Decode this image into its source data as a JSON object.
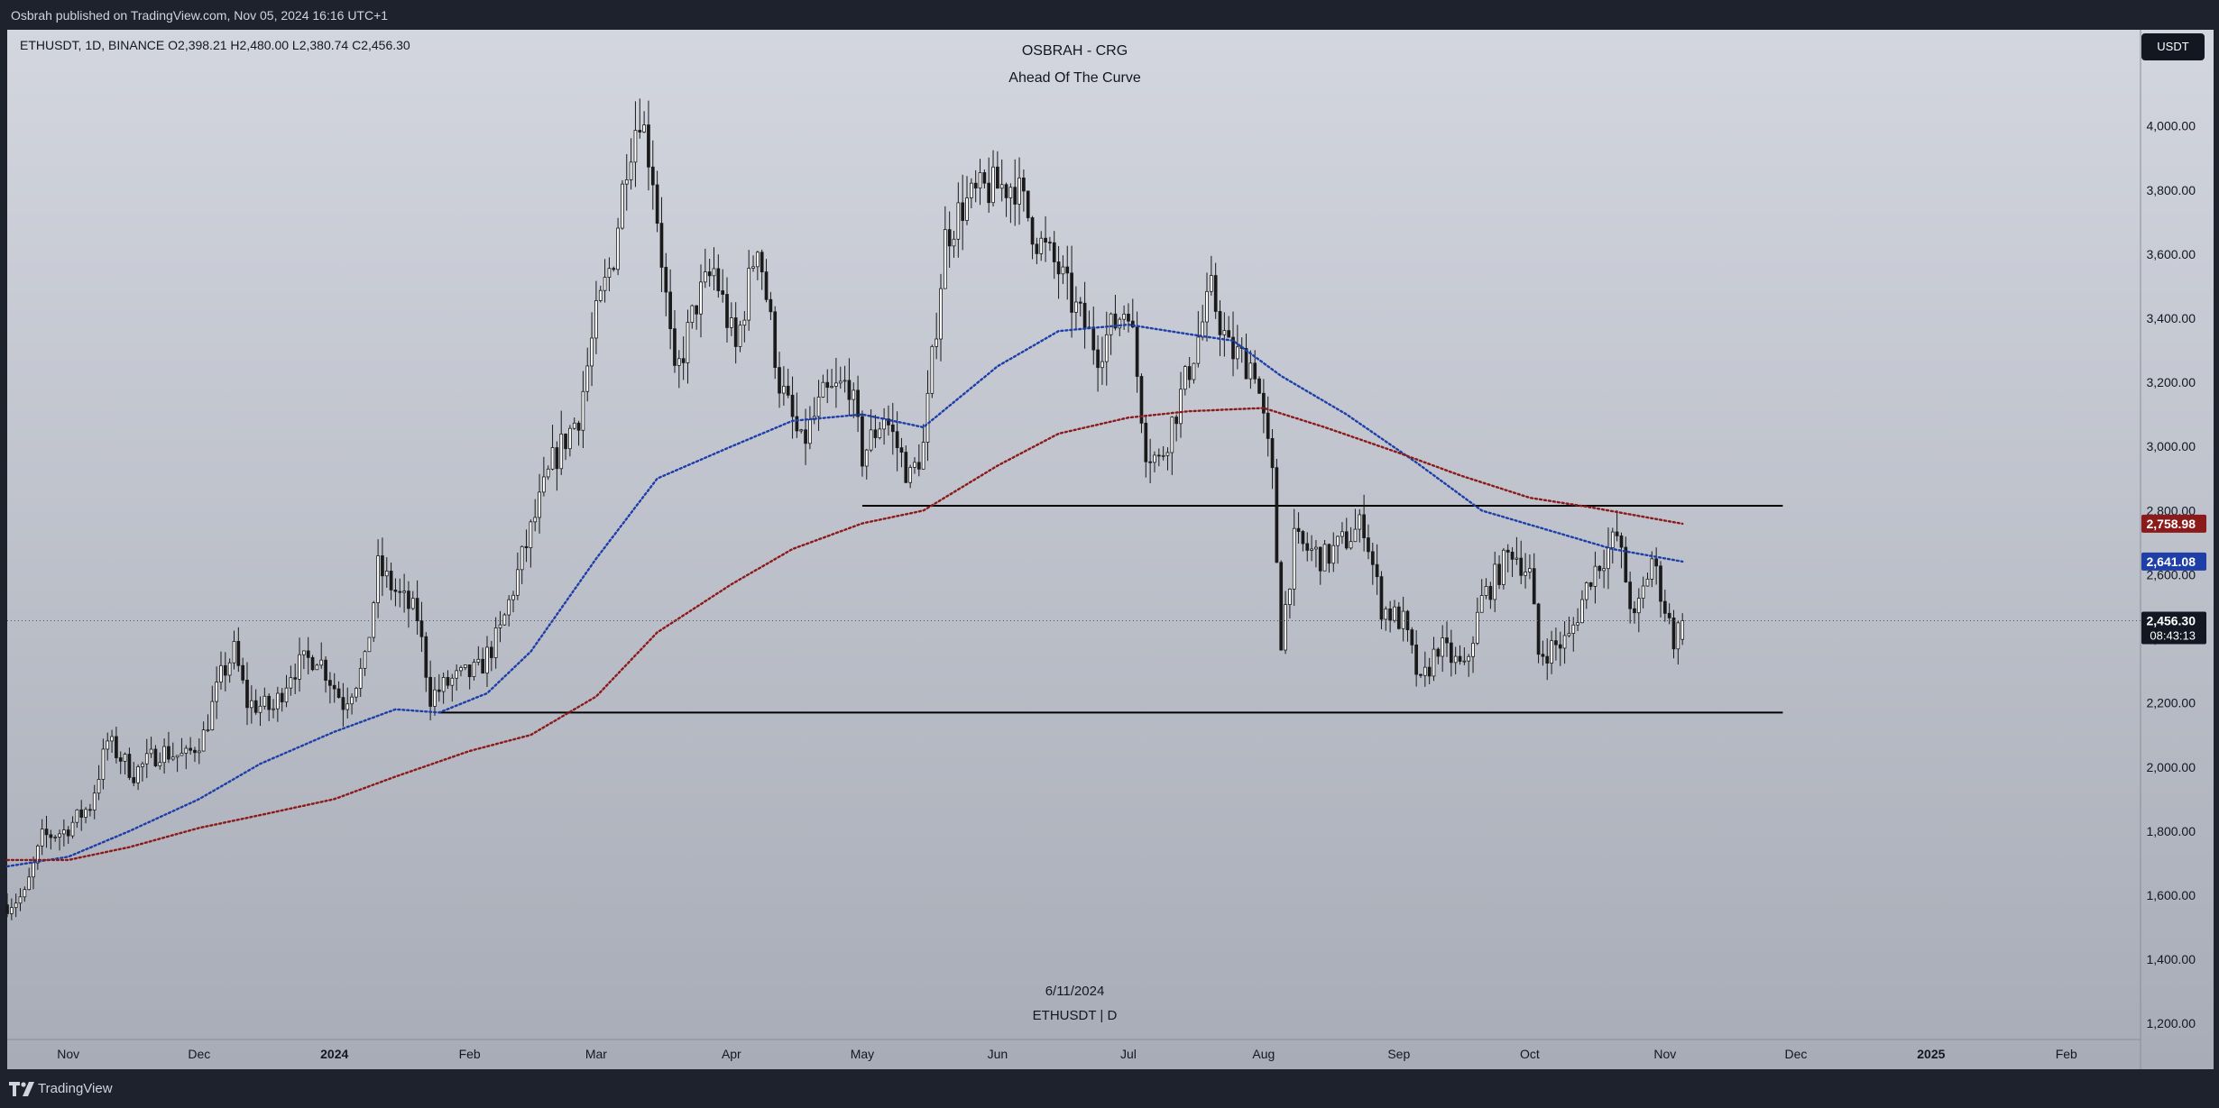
{
  "header": {
    "publisher_line": "Osbrah published on TradingView.com, Nov 05, 2024 16:16 UTC+1"
  },
  "footer": {
    "brand": "TradingView"
  },
  "currency_button": "USDT",
  "chart_data": {
    "type": "candlestick",
    "symbol_info": "ETHUSDT, 1D, BINANCE  O2,398.21  H2,480.00  L2,380.74  C2,456.30",
    "title": "OSBRAH - CRG",
    "subtitle": "Ahead Of The Curve",
    "watermark_date": "6/11/2024",
    "watermark_symbol": "ETHUSDT | D",
    "ohlc_last": {
      "open": 2398.21,
      "high": 2480.0,
      "low": 2380.74,
      "close": 2456.3
    },
    "x_range": [
      "2023-10-18",
      "2025-02-18"
    ],
    "y_range": [
      1150,
      4300
    ],
    "y_ticks": [
      1200,
      1400,
      1600,
      1800,
      2000,
      2200,
      2400,
      2600,
      2800,
      3000,
      3200,
      3400,
      3600,
      3800,
      4000
    ],
    "y_tick_labels": [
      "1,200.00",
      "1,400.00",
      "1,600.00",
      "1,800.00",
      "2,000.00",
      "2,200.00",
      "2,400.00",
      "2,600.00",
      "2,800.00",
      "3,000.00",
      "3,200.00",
      "3,400.00",
      "3,600.00",
      "3,800.00",
      "4,000.00"
    ],
    "x_ticks": [
      {
        "date": "2023-11-01",
        "label": "Nov"
      },
      {
        "date": "2023-12-01",
        "label": "Dec"
      },
      {
        "date": "2024-01-01",
        "label": "2024"
      },
      {
        "date": "2024-02-01",
        "label": "Feb"
      },
      {
        "date": "2024-03-01",
        "label": "Mar"
      },
      {
        "date": "2024-04-01",
        "label": "Apr"
      },
      {
        "date": "2024-05-01",
        "label": "May"
      },
      {
        "date": "2024-06-01",
        "label": "Jun"
      },
      {
        "date": "2024-07-01",
        "label": "Jul"
      },
      {
        "date": "2024-08-01",
        "label": "Aug"
      },
      {
        "date": "2024-09-01",
        "label": "Sep"
      },
      {
        "date": "2024-10-01",
        "label": "Oct"
      },
      {
        "date": "2024-11-01",
        "label": "Nov"
      },
      {
        "date": "2024-12-01",
        "label": "Dec"
      },
      {
        "date": "2025-01-01",
        "label": "2025"
      },
      {
        "date": "2025-02-01",
        "label": "Feb"
      }
    ],
    "price_path": [
      [
        "2023-10-18",
        1570
      ],
      [
        "2023-10-22",
        1600
      ],
      [
        "2023-10-26",
        1780
      ],
      [
        "2023-10-31",
        1800
      ],
      [
        "2023-11-06",
        1880
      ],
      [
        "2023-11-10",
        2080
      ],
      [
        "2023-11-16",
        1980
      ],
      [
        "2023-11-22",
        2050
      ],
      [
        "2023-11-28",
        2030
      ],
      [
        "2023-12-02",
        2100
      ],
      [
        "2023-12-06",
        2280
      ],
      [
        "2023-12-09",
        2360
      ],
      [
        "2023-12-12",
        2200
      ],
      [
        "2023-12-18",
        2180
      ],
      [
        "2023-12-22",
        2300
      ],
      [
        "2023-12-28",
        2350
      ],
      [
        "2024-01-03",
        2200
      ],
      [
        "2024-01-08",
        2320
      ],
      [
        "2024-01-11",
        2620
      ],
      [
        "2024-01-16",
        2530
      ],
      [
        "2024-01-20",
        2470
      ],
      [
        "2024-01-23",
        2220
      ],
      [
        "2024-01-28",
        2270
      ],
      [
        "2024-02-03",
        2300
      ],
      [
        "2024-02-08",
        2420
      ],
      [
        "2024-02-13",
        2650
      ],
      [
        "2024-02-20",
        2950
      ],
      [
        "2024-02-26",
        3100
      ],
      [
        "2024-03-01",
        3400
      ],
      [
        "2024-03-05",
        3600
      ],
      [
        "2024-03-08",
        3900
      ],
      [
        "2024-03-11",
        4050
      ],
      [
        "2024-03-14",
        3850
      ],
      [
        "2024-03-19",
        3200
      ],
      [
        "2024-03-24",
        3450
      ],
      [
        "2024-03-28",
        3550
      ],
      [
        "2024-04-02",
        3300
      ],
      [
        "2024-04-07",
        3650
      ],
      [
        "2024-04-12",
        3200
      ],
      [
        "2024-04-17",
        3000
      ],
      [
        "2024-04-22",
        3150
      ],
      [
        "2024-04-28",
        3200
      ],
      [
        "2024-05-01",
        2970
      ],
      [
        "2024-05-06",
        3100
      ],
      [
        "2024-05-12",
        2900
      ],
      [
        "2024-05-15",
        3000
      ],
      [
        "2024-05-20",
        3650
      ],
      [
        "2024-05-24",
        3750
      ],
      [
        "2024-05-29",
        3800
      ],
      [
        "2024-06-05",
        3820
      ],
      [
        "2024-06-10",
        3650
      ],
      [
        "2024-06-15",
        3550
      ],
      [
        "2024-06-18",
        3450
      ],
      [
        "2024-06-24",
        3300
      ],
      [
        "2024-07-01",
        3450
      ],
      [
        "2024-07-05",
        3000
      ],
      [
        "2024-07-08",
        2950
      ],
      [
        "2024-07-14",
        3200
      ],
      [
        "2024-07-20",
        3480
      ],
      [
        "2024-07-24",
        3300
      ],
      [
        "2024-07-30",
        3250
      ],
      [
        "2024-08-03",
        2900
      ],
      [
        "2024-08-05",
        2400
      ],
      [
        "2024-08-08",
        2700
      ],
      [
        "2024-08-15",
        2650
      ],
      [
        "2024-08-24",
        2760
      ],
      [
        "2024-08-28",
        2500
      ],
      [
        "2024-09-02",
        2450
      ],
      [
        "2024-09-06",
        2250
      ],
      [
        "2024-09-10",
        2380
      ],
      [
        "2024-09-16",
        2300
      ],
      [
        "2024-09-20",
        2520
      ],
      [
        "2024-09-27",
        2680
      ],
      [
        "2024-10-01",
        2600
      ],
      [
        "2024-10-03",
        2350
      ],
      [
        "2024-10-10",
        2400
      ],
      [
        "2024-10-15",
        2600
      ],
      [
        "2024-10-21",
        2720
      ],
      [
        "2024-10-25",
        2450
      ],
      [
        "2024-10-29",
        2650
      ],
      [
        "2024-11-01",
        2500
      ],
      [
        "2024-11-03",
        2400
      ],
      [
        "2024-11-05",
        2456.3
      ]
    ],
    "series": [
      {
        "name": "",
        "color": "#1e3fa8",
        "style": "dotted",
        "last_value": 2641.08,
        "last_label": "2,641.08",
        "values": [
          [
            "2023-10-18",
            1690
          ],
          [
            "2023-11-01",
            1720
          ],
          [
            "2023-11-15",
            1800
          ],
          [
            "2023-12-01",
            1900
          ],
          [
            "2023-12-15",
            2010
          ],
          [
            "2024-01-01",
            2110
          ],
          [
            "2024-01-15",
            2180
          ],
          [
            "2024-01-25",
            2170
          ],
          [
            "2024-02-05",
            2230
          ],
          [
            "2024-02-15",
            2360
          ],
          [
            "2024-03-01",
            2650
          ],
          [
            "2024-03-15",
            2900
          ],
          [
            "2024-04-01",
            3000
          ],
          [
            "2024-04-15",
            3080
          ],
          [
            "2024-05-01",
            3100
          ],
          [
            "2024-05-15",
            3060
          ],
          [
            "2024-06-01",
            3250
          ],
          [
            "2024-06-15",
            3360
          ],
          [
            "2024-07-01",
            3380
          ],
          [
            "2024-07-15",
            3350
          ],
          [
            "2024-07-25",
            3330
          ],
          [
            "2024-08-05",
            3220
          ],
          [
            "2024-08-20",
            3100
          ],
          [
            "2024-09-05",
            2950
          ],
          [
            "2024-09-20",
            2800
          ],
          [
            "2024-10-05",
            2740
          ],
          [
            "2024-10-20",
            2680
          ],
          [
            "2024-11-05",
            2641
          ]
        ]
      },
      {
        "name": "",
        "color": "#8b1a1a",
        "style": "dotted",
        "last_value": 2758.98,
        "last_label": "2,758.98",
        "values": [
          [
            "2023-10-18",
            1710
          ],
          [
            "2023-11-01",
            1710
          ],
          [
            "2023-11-15",
            1750
          ],
          [
            "2023-12-01",
            1810
          ],
          [
            "2023-12-15",
            1850
          ],
          [
            "2024-01-01",
            1900
          ],
          [
            "2024-01-15",
            1970
          ],
          [
            "2024-02-01",
            2050
          ],
          [
            "2024-02-15",
            2100
          ],
          [
            "2024-03-01",
            2220
          ],
          [
            "2024-03-15",
            2420
          ],
          [
            "2024-04-01",
            2570
          ],
          [
            "2024-04-15",
            2680
          ],
          [
            "2024-05-01",
            2760
          ],
          [
            "2024-05-15",
            2800
          ],
          [
            "2024-06-01",
            2940
          ],
          [
            "2024-06-15",
            3040
          ],
          [
            "2024-07-01",
            3090
          ],
          [
            "2024-07-15",
            3110
          ],
          [
            "2024-08-01",
            3120
          ],
          [
            "2024-08-15",
            3060
          ],
          [
            "2024-09-01",
            2980
          ],
          [
            "2024-09-15",
            2910
          ],
          [
            "2024-10-01",
            2840
          ],
          [
            "2024-10-15",
            2810
          ],
          [
            "2024-11-05",
            2759
          ]
        ]
      }
    ],
    "horizontal_lines": [
      {
        "value": 2815,
        "from": "2024-05-01",
        "to": "2024-11-28"
      },
      {
        "value": 2170,
        "from": "2024-01-25",
        "to": "2024-11-28"
      }
    ],
    "current_price": 2456.3,
    "current_price_label": "2,456.30",
    "countdown_label": "08:43:13",
    "grid": false
  }
}
